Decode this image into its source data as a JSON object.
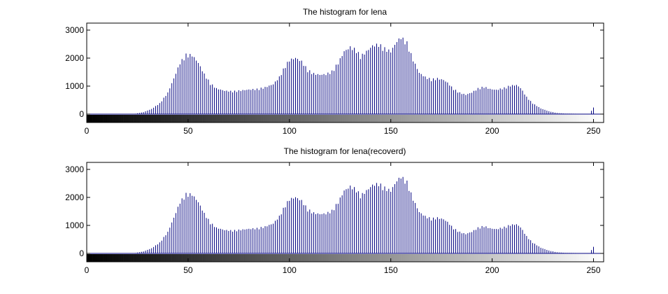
{
  "chart_data": [
    {
      "type": "bar",
      "title": "The histogram for lena",
      "xlabel": "",
      "ylabel": "",
      "xlim": [
        0,
        255
      ],
      "ylim": [
        -300,
        3250
      ],
      "xticks": [
        0,
        50,
        100,
        150,
        200,
        250
      ],
      "yticks": [
        0,
        1000,
        2000,
        3000
      ],
      "grid": false,
      "bar_color": "#00007f",
      "colorbar": "grayscale 0-255 beneath axis",
      "x_points": [
        [
          0,
          0
        ],
        [
          20,
          0
        ],
        [
          24,
          15
        ],
        [
          28,
          70
        ],
        [
          32,
          180
        ],
        [
          36,
          380
        ],
        [
          40,
          750
        ],
        [
          43,
          1250
        ],
        [
          46,
          1800
        ],
        [
          49,
          2080
        ],
        [
          52,
          2070
        ],
        [
          55,
          1800
        ],
        [
          58,
          1400
        ],
        [
          61,
          1080
        ],
        [
          64,
          900
        ],
        [
          68,
          820
        ],
        [
          72,
          800
        ],
        [
          76,
          830
        ],
        [
          80,
          860
        ],
        [
          84,
          880
        ],
        [
          88,
          940
        ],
        [
          92,
          1050
        ],
        [
          95,
          1300
        ],
        [
          98,
          1700
        ],
        [
          100,
          1900
        ],
        [
          103,
          1970
        ],
        [
          106,
          1850
        ],
        [
          109,
          1550
        ],
        [
          112,
          1420
        ],
        [
          115,
          1380
        ],
        [
          118,
          1400
        ],
        [
          121,
          1500
        ],
        [
          124,
          1800
        ],
        [
          127,
          2200
        ],
        [
          130,
          2350
        ],
        [
          133,
          2250
        ],
        [
          135,
          2020
        ],
        [
          138,
          2200
        ],
        [
          141,
          2400
        ],
        [
          144,
          2450
        ],
        [
          147,
          2300
        ],
        [
          150,
          2200
        ],
        [
          153,
          2550
        ],
        [
          155,
          2700
        ],
        [
          158,
          2500
        ],
        [
          161,
          1900
        ],
        [
          164,
          1450
        ],
        [
          167,
          1300
        ],
        [
          170,
          1220
        ],
        [
          173,
          1250
        ],
        [
          176,
          1200
        ],
        [
          178,
          1100
        ],
        [
          181,
          880
        ],
        [
          184,
          750
        ],
        [
          187,
          680
        ],
        [
          190,
          760
        ],
        [
          193,
          900
        ],
        [
          196,
          960
        ],
        [
          199,
          880
        ],
        [
          202,
          850
        ],
        [
          206,
          920
        ],
        [
          209,
          1000
        ],
        [
          212,
          1020
        ],
        [
          214,
          920
        ],
        [
          217,
          600
        ],
        [
          220,
          380
        ],
        [
          224,
          200
        ],
        [
          228,
          100
        ],
        [
          232,
          40
        ],
        [
          236,
          20
        ],
        [
          240,
          15
        ],
        [
          244,
          8
        ],
        [
          248,
          4
        ],
        [
          250,
          230
        ],
        [
          251,
          0
        ],
        [
          255,
          0
        ]
      ]
    },
    {
      "type": "bar",
      "title": "The histogram for lena(recoverd)",
      "xlabel": "",
      "ylabel": "",
      "xlim": [
        0,
        255
      ],
      "ylim": [
        -300,
        3250
      ],
      "xticks": [
        0,
        50,
        100,
        150,
        200,
        250
      ],
      "yticks": [
        0,
        1000,
        2000,
        3000
      ],
      "grid": false,
      "bar_color": "#00007f",
      "colorbar": "grayscale 0-255 beneath axis",
      "x_points": [
        [
          0,
          0
        ],
        [
          20,
          0
        ],
        [
          24,
          15
        ],
        [
          28,
          70
        ],
        [
          32,
          180
        ],
        [
          36,
          380
        ],
        [
          40,
          750
        ],
        [
          43,
          1250
        ],
        [
          46,
          1800
        ],
        [
          49,
          2080
        ],
        [
          52,
          2070
        ],
        [
          55,
          1800
        ],
        [
          58,
          1400
        ],
        [
          61,
          1080
        ],
        [
          64,
          900
        ],
        [
          68,
          820
        ],
        [
          72,
          800
        ],
        [
          76,
          830
        ],
        [
          80,
          860
        ],
        [
          84,
          880
        ],
        [
          88,
          940
        ],
        [
          92,
          1050
        ],
        [
          95,
          1300
        ],
        [
          98,
          1700
        ],
        [
          100,
          1900
        ],
        [
          103,
          1970
        ],
        [
          106,
          1850
        ],
        [
          109,
          1550
        ],
        [
          112,
          1420
        ],
        [
          115,
          1380
        ],
        [
          118,
          1400
        ],
        [
          121,
          1500
        ],
        [
          124,
          1800
        ],
        [
          127,
          2200
        ],
        [
          130,
          2350
        ],
        [
          133,
          2250
        ],
        [
          135,
          2020
        ],
        [
          138,
          2200
        ],
        [
          141,
          2400
        ],
        [
          144,
          2450
        ],
        [
          147,
          2300
        ],
        [
          150,
          2200
        ],
        [
          153,
          2550
        ],
        [
          155,
          2700
        ],
        [
          158,
          2500
        ],
        [
          161,
          1900
        ],
        [
          164,
          1450
        ],
        [
          167,
          1300
        ],
        [
          170,
          1220
        ],
        [
          173,
          1250
        ],
        [
          176,
          1200
        ],
        [
          178,
          1100
        ],
        [
          181,
          880
        ],
        [
          184,
          750
        ],
        [
          187,
          680
        ],
        [
          190,
          760
        ],
        [
          193,
          900
        ],
        [
          196,
          960
        ],
        [
          199,
          880
        ],
        [
          202,
          850
        ],
        [
          206,
          920
        ],
        [
          209,
          1000
        ],
        [
          212,
          1020
        ],
        [
          214,
          920
        ],
        [
          217,
          600
        ],
        [
          220,
          380
        ],
        [
          224,
          200
        ],
        [
          228,
          100
        ],
        [
          232,
          40
        ],
        [
          236,
          20
        ],
        [
          240,
          15
        ],
        [
          244,
          8
        ],
        [
          248,
          4
        ],
        [
          250,
          230
        ],
        [
          251,
          0
        ],
        [
          255,
          0
        ]
      ]
    }
  ]
}
